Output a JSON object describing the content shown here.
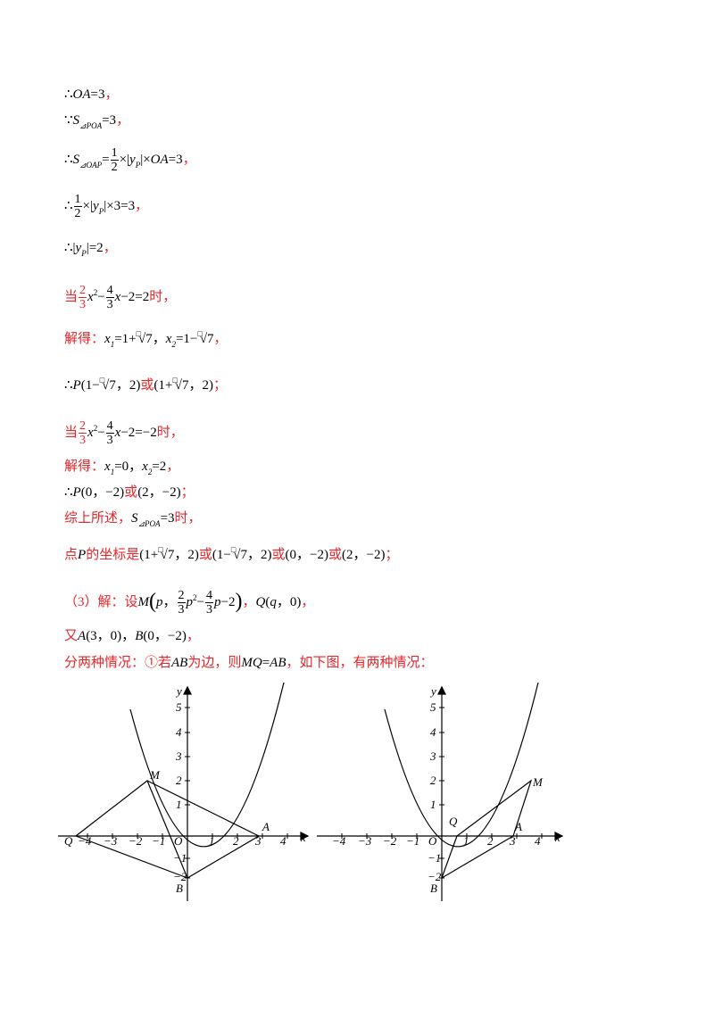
{
  "lines": {
    "l1": "∴OA=3，",
    "l2": "∵S⊿POA=3，",
    "l3": "∴S⊿OAP=1/2×|yP|×OA=3，",
    "l4": "∴1/2×|yP|×3=3，",
    "l5": "∴|yP|=2，",
    "l6": "当2/3x²−4/3x−2=2时，",
    "l7": "解得：x1=1+√7，x2=1−√7，",
    "l8": "∴P(1−√7，2)或(1+√7，2)；",
    "l9": "当2/3x²−4/3x−2=−2时，",
    "l10": "解得：x1=0，x2=2，",
    "l11": "∴P(0，−2)或(2，−2)；",
    "l12": "综上所述，S⊿POA=3时，",
    "l13": "点P的坐标是(1+√7，2)或(1−√7，2)或(0，−2)或(2，−2)；",
    "l14": "（3）解：设M(p，2/3p²−4/3p−2)，Q(q，0)，",
    "l15": "又A(3，0)，B(0，−2)，",
    "l16": "分两种情况：①若AB为边，则MQ=AB，如下图，有两种情况："
  },
  "graph1": {
    "x_ticks": [
      "−4",
      "−3",
      "−2",
      "−1",
      "1",
      "2",
      "3",
      "4"
    ],
    "y_ticks": [
      "5",
      "4",
      "3",
      "2",
      "1",
      "−1",
      "−2"
    ],
    "axis_x": "x",
    "axis_y": "y",
    "origin": "O",
    "points": {
      "M": [
        -1.5,
        2
      ],
      "A": [
        3,
        0
      ],
      "Q": [
        -4.5,
        0
      ],
      "B": [
        0,
        -2
      ]
    },
    "labels": {
      "M": "M",
      "A": "A",
      "Q": "Q",
      "B": "B"
    }
  },
  "graph2": {
    "x_ticks": [
      "−4",
      "−3",
      "−2",
      "−1",
      "1",
      "2",
      "3",
      "4"
    ],
    "y_ticks": [
      "5",
      "4",
      "3",
      "2",
      "1",
      "−1",
      "−2"
    ],
    "axis_x": "x",
    "axis_y": "y",
    "origin": "O",
    "points": {
      "M": [
        3.6,
        2
      ],
      "A": [
        3,
        0
      ],
      "Q": [
        0.6,
        0
      ],
      "B": [
        0,
        -2
      ]
    },
    "labels": {
      "M": "M",
      "A": "A",
      "Q": "Q",
      "B": "B"
    }
  }
}
